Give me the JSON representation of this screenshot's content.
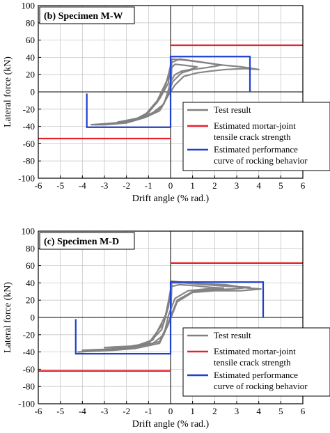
{
  "chart_data": [
    {
      "type": "line",
      "title": "(b) Specimen M-W",
      "xlabel": "Drift angle (% rad.)",
      "ylabel": "Lateral force (kN)",
      "xlim": [
        -6,
        6
      ],
      "ylim": [
        -100,
        100
      ],
      "xticks": [
        "-6",
        "-5",
        "-4",
        "-3",
        "-2",
        "-1",
        "0",
        "1",
        "2",
        "3",
        "4",
        "5",
        "6"
      ],
      "yticks": [
        "100",
        "80",
        "60",
        "40",
        "20",
        "0",
        "-20",
        "-40",
        "-60",
        "-80",
        "-100"
      ],
      "grid": true,
      "legend_position": "bottom-right",
      "legend": [
        "Test result",
        "Estimated mortar-joint tensile crack strength",
        "Estimated performance curve of rocking behavior"
      ],
      "series": [
        {
          "name": "Test result",
          "color": "#808080",
          "loops": [
            [
              [
                0,
                0
              ],
              [
                0.05,
                28
              ],
              [
                0.2,
                32
              ],
              [
                0.6,
                31
              ],
              [
                1.2,
                29
              ],
              [
                0.9,
                26
              ],
              [
                0.5,
                24
              ],
              [
                0.2,
                20
              ],
              [
                0,
                12
              ],
              [
                -0.1,
                2
              ],
              [
                -0.3,
                -14
              ],
              [
                -0.8,
                -24
              ],
              [
                -1.4,
                -30
              ],
              [
                -2,
                -33
              ],
              [
                -2.4,
                -35
              ],
              [
                -1.6,
                -32
              ],
              [
                -1.1,
                -25
              ],
              [
                -0.6,
                -10
              ],
              [
                -0.3,
                6
              ],
              [
                0,
                22
              ]
            ],
            [
              [
                0,
                0
              ],
              [
                0.05,
                34
              ],
              [
                0.4,
                38
              ],
              [
                1,
                36
              ],
              [
                1.8,
                33
              ],
              [
                2.3,
                31
              ],
              [
                1.6,
                28
              ],
              [
                1,
                26
              ],
              [
                0.5,
                22
              ],
              [
                0.1,
                12
              ],
              [
                -0.1,
                -2
              ],
              [
                -0.4,
                -18
              ],
              [
                -1,
                -28
              ],
              [
                -1.8,
                -34
              ],
              [
                -2.7,
                -37
              ],
              [
                -3.4,
                -38
              ],
              [
                -2.5,
                -36
              ],
              [
                -1.7,
                -33
              ],
              [
                -1,
                -24
              ],
              [
                -0.5,
                -8
              ],
              [
                -0.1,
                10
              ],
              [
                0,
                30
              ]
            ],
            [
              [
                0,
                0
              ],
              [
                0.05,
                38
              ],
              [
                0.6,
                37
              ],
              [
                1.5,
                34
              ],
              [
                2.4,
                31
              ],
              [
                3.2,
                29
              ],
              [
                3.5,
                28
              ],
              [
                4,
                26
              ],
              [
                3.4,
                27
              ],
              [
                2.5,
                26
              ],
              [
                1.8,
                24
              ],
              [
                1.2,
                22
              ],
              [
                0.6,
                18
              ],
              [
                0.2,
                8
              ],
              [
                -0.1,
                -4
              ],
              [
                -0.5,
                -22
              ],
              [
                -1.2,
                -30
              ],
              [
                -2,
                -36
              ],
              [
                -3,
                -38
              ],
              [
                -3.6,
                -38
              ],
              [
                -3,
                -37
              ],
              [
                -2,
                -35
              ],
              [
                -1.2,
                -28
              ],
              [
                -0.6,
                -12
              ],
              [
                -0.2,
                10
              ],
              [
                0,
                30
              ]
            ]
          ]
        },
        {
          "name": "Estimated mortar-joint tensile crack strength",
          "color": "#e8202a",
          "segments": [
            [
              [
                0,
                54
              ],
              [
                6,
                54
              ]
            ],
            [
              [
                -6,
                -54
              ],
              [
                0,
                -54
              ]
            ]
          ]
        },
        {
          "name": "Estimated performance curve of rocking behavior",
          "color": "#1f3fd0",
          "segments": [
            [
              [
                0,
                0
              ],
              [
                0,
                41
              ],
              [
                3.6,
                41
              ],
              [
                3.6,
                0
              ]
            ],
            [
              [
                0,
                0
              ],
              [
                0,
                -41
              ],
              [
                -3.8,
                -41
              ],
              [
                -3.8,
                -2
              ]
            ]
          ]
        }
      ]
    },
    {
      "type": "line",
      "title": "(c) Specimen M-D",
      "xlabel": "Drift angle (% rad.)",
      "ylabel": "Lateral force (kN)",
      "xlim": [
        -6,
        6
      ],
      "ylim": [
        -100,
        100
      ],
      "xticks": [
        "-6",
        "-5",
        "-4",
        "-3",
        "-2",
        "-1",
        "0",
        "1",
        "2",
        "3",
        "4",
        "5",
        "6"
      ],
      "yticks": [
        "100",
        "80",
        "60",
        "40",
        "20",
        "0",
        "-20",
        "-40",
        "-60",
        "-80",
        "-100"
      ],
      "grid": true,
      "legend_position": "bottom-right",
      "legend": [
        "Test result",
        "Estimated mortar-joint tensile crack strength",
        "Estimated performance curve of rocking behavior"
      ],
      "series": [
        {
          "name": "Test result",
          "color": "#808080",
          "loops": [
            [
              [
                0,
                0
              ],
              [
                0.05,
                36
              ],
              [
                0.4,
                38
              ],
              [
                1,
                37
              ],
              [
                1.8,
                35
              ],
              [
                2.4,
                34
              ],
              [
                1.6,
                33
              ],
              [
                0.8,
                31
              ],
              [
                0.2,
                22
              ],
              [
                -0.1,
                2
              ],
              [
                -0.3,
                -20
              ],
              [
                -0.8,
                -30
              ],
              [
                -1.5,
                -33
              ],
              [
                -2.5,
                -34
              ],
              [
                -3,
                -35
              ],
              [
                -2,
                -34
              ],
              [
                -1,
                -30
              ],
              [
                -0.4,
                -14
              ],
              [
                -0.1,
                12
              ],
              [
                0,
                30
              ]
            ],
            [
              [
                0,
                0
              ],
              [
                0.05,
                40
              ],
              [
                0.6,
                40
              ],
              [
                1.6,
                38
              ],
              [
                2.6,
                36
              ],
              [
                3.6,
                35
              ],
              [
                2.8,
                33
              ],
              [
                1.8,
                32
              ],
              [
                1,
                30
              ],
              [
                0.3,
                20
              ],
              [
                -0.1,
                -6
              ],
              [
                -0.5,
                -28
              ],
              [
                -1.5,
                -34
              ],
              [
                -2.8,
                -37
              ],
              [
                -4,
                -38
              ],
              [
                -3,
                -37
              ],
              [
                -1.8,
                -35
              ],
              [
                -0.8,
                -26
              ],
              [
                -0.2,
                4
              ],
              [
                0,
                32
              ]
            ],
            [
              [
                0,
                0
              ],
              [
                0.05,
                42
              ],
              [
                0.5,
                41
              ],
              [
                1.5,
                39
              ],
              [
                2.5,
                38
              ],
              [
                3.5,
                34
              ],
              [
                4.1,
                33
              ],
              [
                3.2,
                31
              ],
              [
                2,
                31
              ],
              [
                1,
                29
              ],
              [
                0.3,
                18
              ],
              [
                -0.1,
                -8
              ],
              [
                -0.5,
                -30
              ],
              [
                -1.6,
                -36
              ],
              [
                -2.6,
                -38
              ],
              [
                -3.6,
                -39
              ],
              [
                -4.2,
                -40
              ],
              [
                -3.2,
                -38
              ],
              [
                -2,
                -36
              ],
              [
                -1,
                -30
              ],
              [
                -0.3,
                -6
              ],
              [
                0,
                30
              ]
            ]
          ]
        },
        {
          "name": "Estimated mortar-joint tensile crack strength",
          "color": "#e8202a",
          "segments": [
            [
              [
                0,
                63
              ],
              [
                6,
                63
              ]
            ],
            [
              [
                -6,
                -62
              ],
              [
                0,
                -62
              ]
            ]
          ]
        },
        {
          "name": "Estimated performance curve of rocking behavior",
          "color": "#1f3fd0",
          "segments": [
            [
              [
                0,
                0
              ],
              [
                0,
                41
              ],
              [
                4.2,
                41
              ],
              [
                4.2,
                0
              ]
            ],
            [
              [
                0,
                0
              ],
              [
                0,
                -42
              ],
              [
                -4.3,
                -42
              ],
              [
                -4.3,
                -2
              ]
            ]
          ]
        }
      ]
    }
  ]
}
